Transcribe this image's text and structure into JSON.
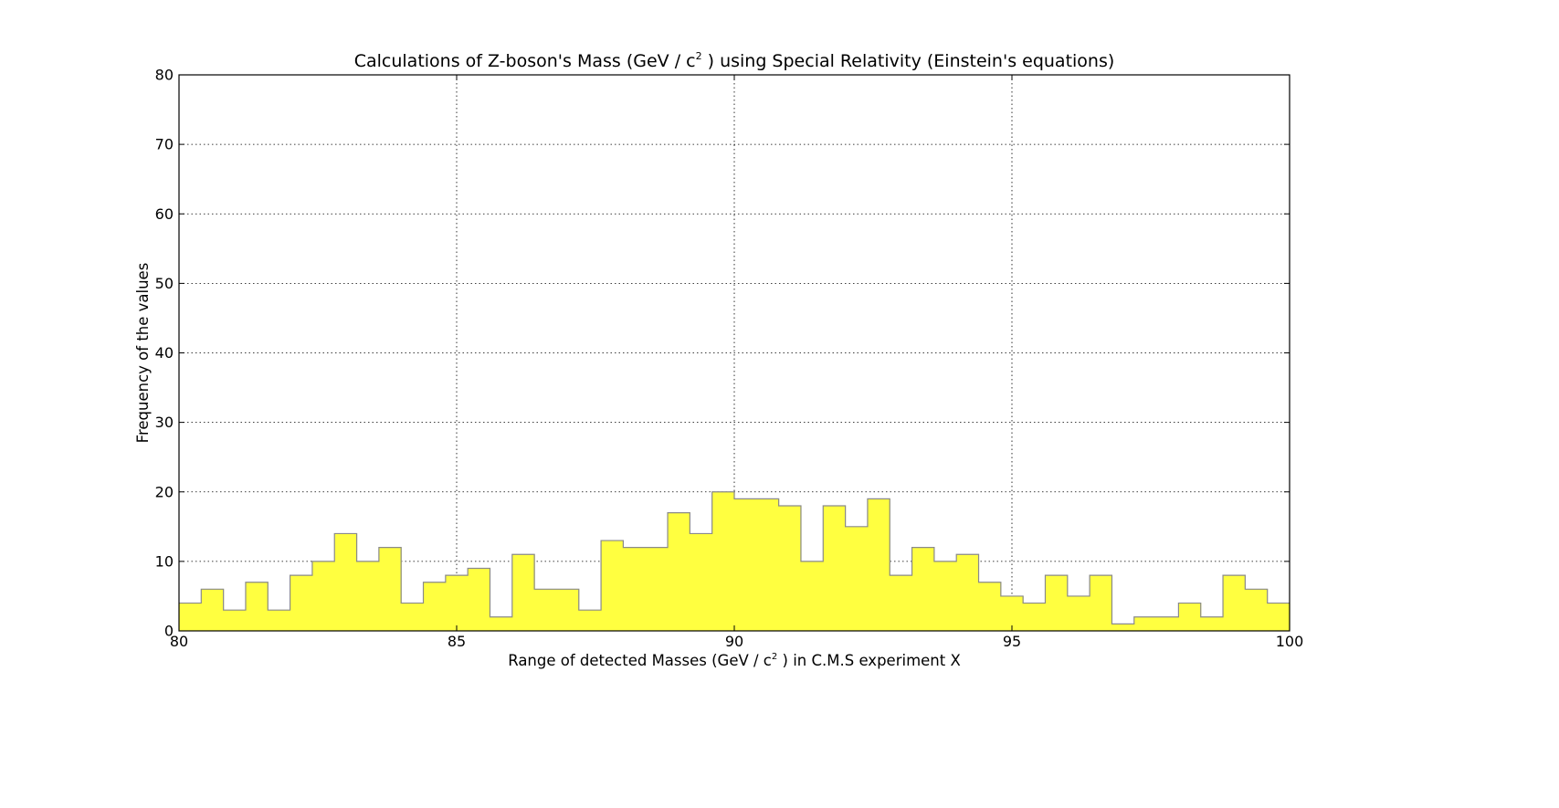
{
  "chart_data": {
    "type": "bar",
    "title": {
      "before": "Calculations of Z-boson's Mass (GeV / c",
      "sup": "2",
      "after": " ) using Special Relativity (Einstein's equations)"
    },
    "xlabel": {
      "before": "Range of detected Masses (GeV / c",
      "sup": "2",
      "after": " ) in C.M.S experiment X"
    },
    "ylabel": "Frequency of the values",
    "xlim": [
      80,
      100
    ],
    "ylim": [
      0,
      80
    ],
    "xticks": [
      80,
      85,
      90,
      95,
      100
    ],
    "yticks": [
      0,
      10,
      20,
      30,
      40,
      50,
      60,
      70,
      80
    ],
    "grid": true,
    "bins": 50,
    "bin_edges_start": 80,
    "bin_width": 0.4,
    "counts": [
      4,
      6,
      3,
      7,
      3,
      8,
      10,
      14,
      10,
      12,
      4,
      7,
      8,
      9,
      2,
      11,
      6,
      6,
      3,
      13,
      12,
      12,
      17,
      14,
      20,
      19,
      19,
      18,
      10,
      18,
      15,
      19,
      8,
      12,
      10,
      11,
      7,
      5,
      4,
      8,
      5,
      8,
      1,
      2,
      2,
      4,
      2,
      8,
      6,
      4
    ],
    "fill_color": "#ffff40",
    "edge_color": "#8a8a8a"
  }
}
